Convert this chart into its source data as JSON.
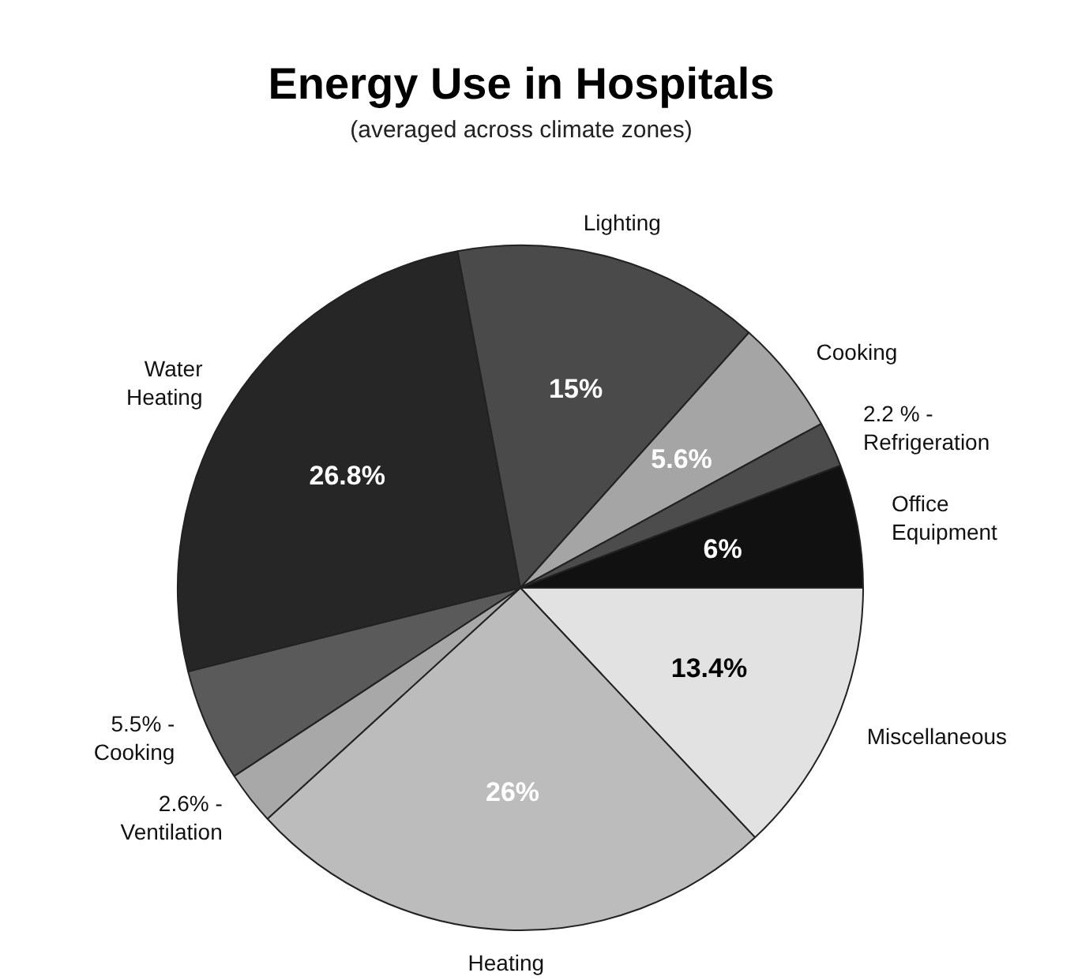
{
  "chart_data": {
    "type": "pie",
    "title": "Energy Use in Hospitals",
    "subtitle": "(averaged across climate zones)",
    "categories": [
      "Miscellaneous",
      "Heating",
      "2.6% - Ventilation",
      "5.5% - Cooking",
      "Water Heating",
      "Lighting",
      "Cooking",
      "2.2 % - Refrigeration",
      "Office Equipment"
    ],
    "values": [
      13.4,
      26,
      2.6,
      5.5,
      26.8,
      15,
      5.6,
      2.2,
      6
    ],
    "value_labels": [
      "13.4%",
      "26%",
      null,
      null,
      "26.8%",
      "15%",
      "5.6%",
      null,
      "6%"
    ],
    "colors": [
      "#e2e2e2",
      "#bcbcbc",
      "#a8a8a8",
      "#5a5a5a",
      "#262626",
      "#4a4a4a",
      "#a5a5a5",
      "#4c4c4c",
      "#111111"
    ],
    "legend": false
  }
}
